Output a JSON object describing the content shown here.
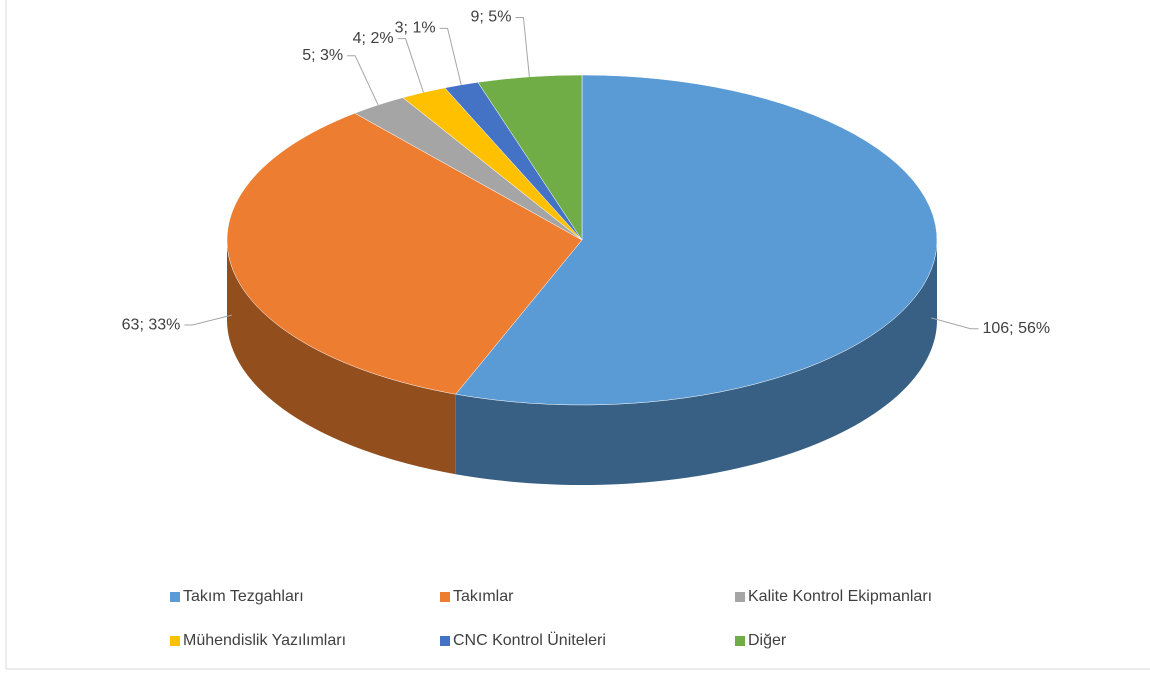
{
  "chart_data": {
    "type": "pie",
    "categories": [
      "Takım Tezgahları",
      "Takımlar",
      "Kalite Kontrol Ekipmanları",
      "Mühendislik Yazılımları",
      "CNC Kontrol Üniteleri",
      "Diğer"
    ],
    "values": [
      106,
      63,
      5,
      4,
      3,
      9
    ],
    "value_labels": [
      "106; 56%",
      "63; 33%",
      "5; 3%",
      "4; 2%",
      "3; 1%",
      "9; 5%"
    ],
    "colors": [
      "#5b9bd5",
      "#ed7d31",
      "#a5a5a5",
      "#ffc000",
      "#4472c4",
      "#70ad47"
    ],
    "legend": "bottom"
  }
}
